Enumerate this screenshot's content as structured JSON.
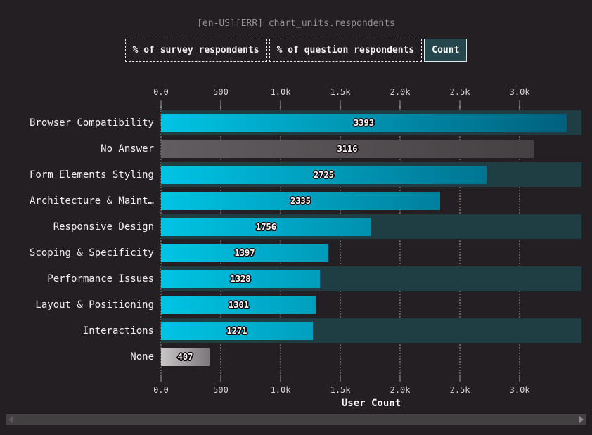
{
  "header": {
    "title": "[en-US][ERR] chart_units.respondents"
  },
  "toolbar": {
    "buttons": [
      {
        "id": "percent-survey-respondents",
        "label": "% of survey respondents",
        "active": false
      },
      {
        "id": "percent-question-respondents",
        "label": "% of question respondents",
        "active": false
      },
      {
        "id": "count",
        "label": "Count",
        "active": true
      }
    ]
  },
  "chart_data": {
    "type": "bar",
    "orientation": "horizontal",
    "xlabel": "User Count",
    "categories": [
      "Browser Compatibility",
      "No Answer",
      "Form Elements Styling",
      "Architecture & Maint…",
      "Responsive Design",
      "Scoping & Specificity",
      "Performance Issues",
      "Layout & Positioning",
      "Interactions",
      "None"
    ],
    "values": [
      3393,
      3116,
      2725,
      2335,
      1756,
      1397,
      1328,
      1301,
      1271,
      407
    ],
    "bar_styles": [
      "accent",
      "neutral-dark",
      "accent",
      "accent",
      "accent",
      "accent",
      "accent",
      "accent",
      "accent",
      "neutral-light"
    ],
    "x_tick_labels": [
      "0.0",
      "500",
      "1.0k",
      "1.5k",
      "2.0k",
      "2.5k",
      "3.0k"
    ],
    "x_tick_values": [
      0,
      500,
      1000,
      1500,
      2000,
      2500,
      3000
    ],
    "xlim": [
      0,
      3517
    ],
    "grid": "vertical-dotted",
    "row_striping": "alternate-even",
    "legend": "none"
  },
  "colors": {
    "background": "#241f22",
    "row_stripe": "#1f3e44",
    "bar_gradient_start": "#00c4e4",
    "bar_gradient_end": "#005d7a",
    "bar_neutral_dark_start": "#615d60",
    "bar_neutral_dark_end": "#454143",
    "bar_neutral_light_start": "#c9c6c8",
    "bar_neutral_light_end": "#7b777a",
    "active_button_bg": "#25464c",
    "text_primary": "#f0eef0",
    "text_muted": "#949093"
  },
  "scrollbar": {
    "orientation": "horizontal",
    "left_icon": "scroll-left-arrow",
    "right_icon": "scroll-right-arrow"
  }
}
